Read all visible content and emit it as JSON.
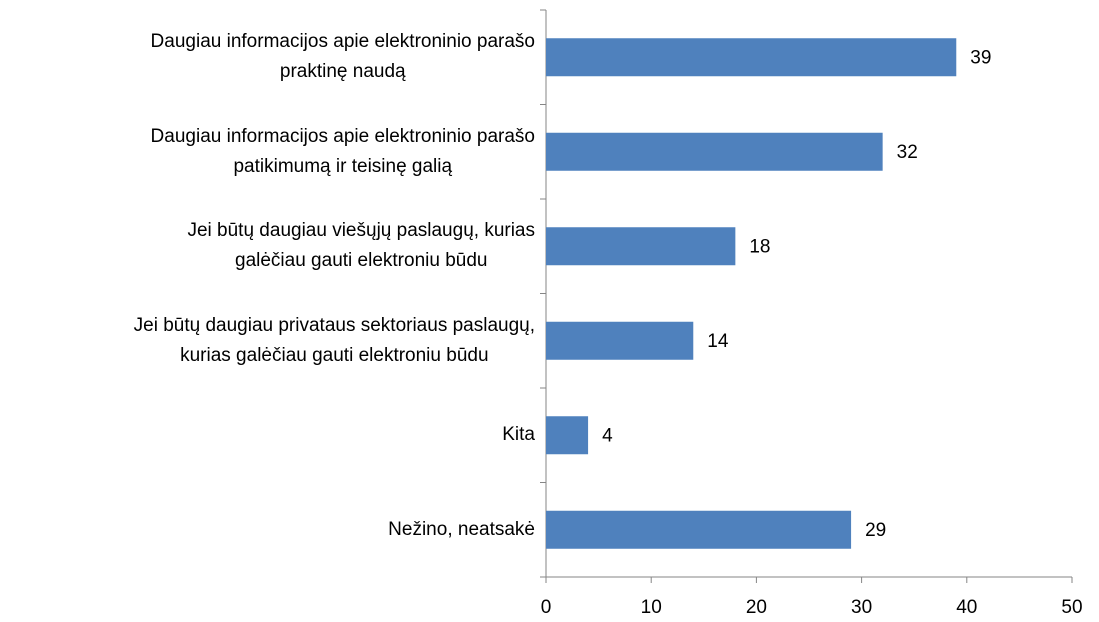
{
  "chart_data": {
    "type": "bar",
    "orientation": "horizontal",
    "categories": [
      "Daugiau informacijos apie elektroninio parašo\npraktinę naudą",
      "Daugiau informacijos apie elektroninio parašo\npatikimumą ir teisinę galią",
      "Jei būtų daugiau viešųjų paslaugų, kurias\ngalėčiau gauti elektroniu būdu",
      "Jei būtų daugiau privataus sektoriaus paslaugų,\nkurias galėčiau gauti elektroniu būdu",
      "Kita",
      "Nežino, neatsakė"
    ],
    "values": [
      39,
      32,
      18,
      14,
      4,
      29
    ],
    "color": "#4f81bd",
    "xlim": [
      0,
      50
    ],
    "xticks": [
      0,
      10,
      20,
      30,
      40,
      50
    ],
    "grid": false
  }
}
